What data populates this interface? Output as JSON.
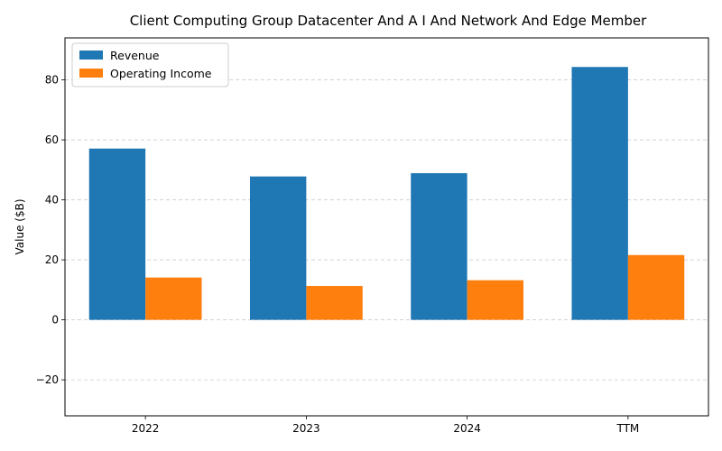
{
  "chart_data": {
    "type": "bar",
    "title": "Client Computing Group Datacenter And A I And Network And Edge Member",
    "xlabel": "",
    "ylabel": "Value ($B)",
    "categories": [
      "2022",
      "2023",
      "2024",
      "TTM"
    ],
    "series": [
      {
        "name": "Revenue",
        "color": "#1f77b4",
        "values": [
          57.1,
          47.8,
          48.9,
          84.3
        ]
      },
      {
        "name": "Operating Income",
        "color": "#ff7f0e",
        "values": [
          14.1,
          11.3,
          13.2,
          21.6
        ]
      }
    ],
    "ylim": [
      -32,
      94
    ],
    "yticks": [
      -20,
      0,
      20,
      40,
      60,
      80
    ],
    "ytick_labels": [
      "−20",
      "0",
      "20",
      "40",
      "60",
      "80"
    ],
    "grid": "y-dashed",
    "legend_position": "top-left"
  }
}
